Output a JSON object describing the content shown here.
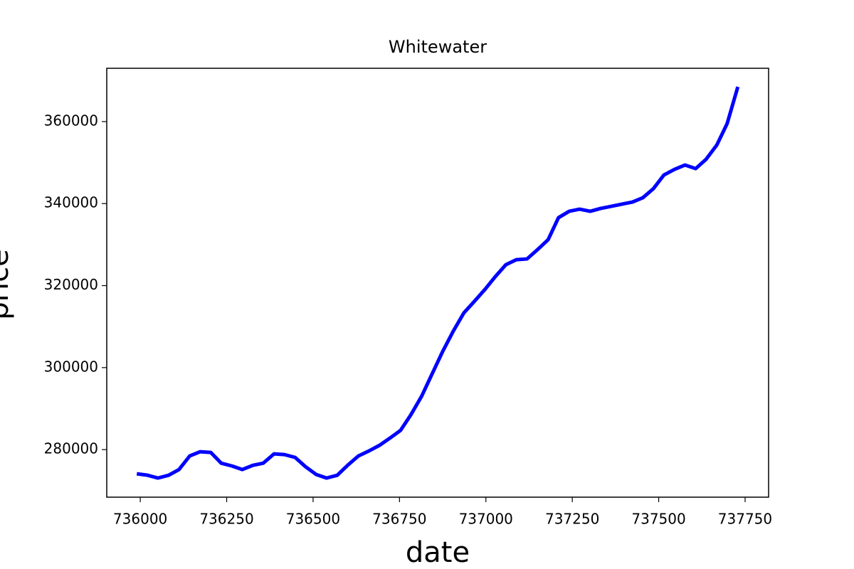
{
  "chart_data": {
    "type": "line",
    "title": "Whitewater",
    "x_label": "date",
    "y_label": "price",
    "x": [
      735990,
      736021,
      736051,
      736082,
      736112,
      736143,
      736173,
      736204,
      736234,
      736265,
      736295,
      736326,
      736356,
      736387,
      736417,
      736448,
      736478,
      736509,
      736539,
      736570,
      736600,
      736631,
      736661,
      736692,
      736722,
      736753,
      736783,
      736814,
      736844,
      736875,
      736905,
      736936,
      736966,
      736997,
      737027,
      737058,
      737088,
      737119,
      737149,
      737180,
      737210,
      737241,
      737271,
      737302,
      737332,
      737363,
      737393,
      737424,
      737454,
      737485,
      737515,
      737546,
      737576,
      737607,
      737637,
      737668,
      737698,
      737729
    ],
    "series": [
      {
        "color": "#0000ff",
        "values": [
          274100,
          273750,
          273060,
          273750,
          275140,
          278440,
          279480,
          279310,
          276700,
          276010,
          275140,
          276180,
          276700,
          278960,
          278790,
          278090,
          275840,
          273930,
          273060,
          273750,
          276180,
          278440,
          279650,
          281040,
          282780,
          284690,
          288500,
          293010,
          298390,
          303940,
          308800,
          313310,
          316090,
          319040,
          322160,
          325110,
          326320,
          326500,
          328750,
          331180,
          336560,
          338120,
          338640,
          338120,
          338820,
          339340,
          339860,
          340380,
          341420,
          343670,
          346970,
          348360,
          349400,
          348530,
          350790,
          354260,
          359500,
          368480
        ]
      }
    ],
    "xlim": [
      735903,
      737818
    ],
    "xticks": [
      736000,
      736250,
      736500,
      736750,
      737000,
      737250,
      737500,
      737750
    ],
    "ylim": [
      268400,
      373000
    ],
    "yticks": [
      280000,
      300000,
      320000,
      340000,
      360000
    ],
    "grid": false
  }
}
